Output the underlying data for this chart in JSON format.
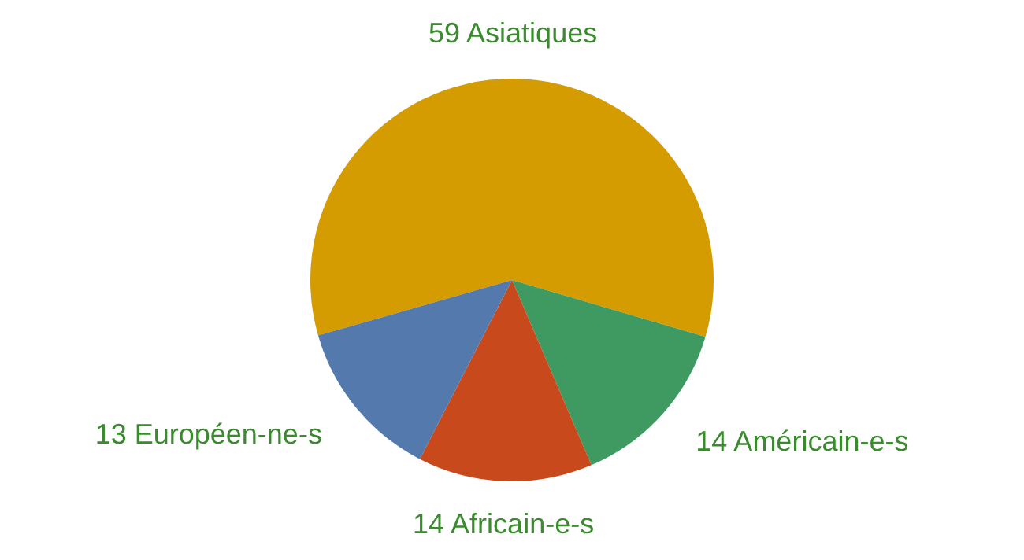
{
  "chart_data": {
    "type": "pie",
    "categories": [
      "59 Asiatiques",
      "14 Américain-e-s",
      "14 Africain-e-s",
      "13 Européen-ne-s"
    ],
    "values": [
      59,
      14,
      14,
      13
    ],
    "colors": [
      "#d49c00",
      "#3f9a62",
      "#c8491b",
      "#5479ac"
    ],
    "legend": false
  }
}
